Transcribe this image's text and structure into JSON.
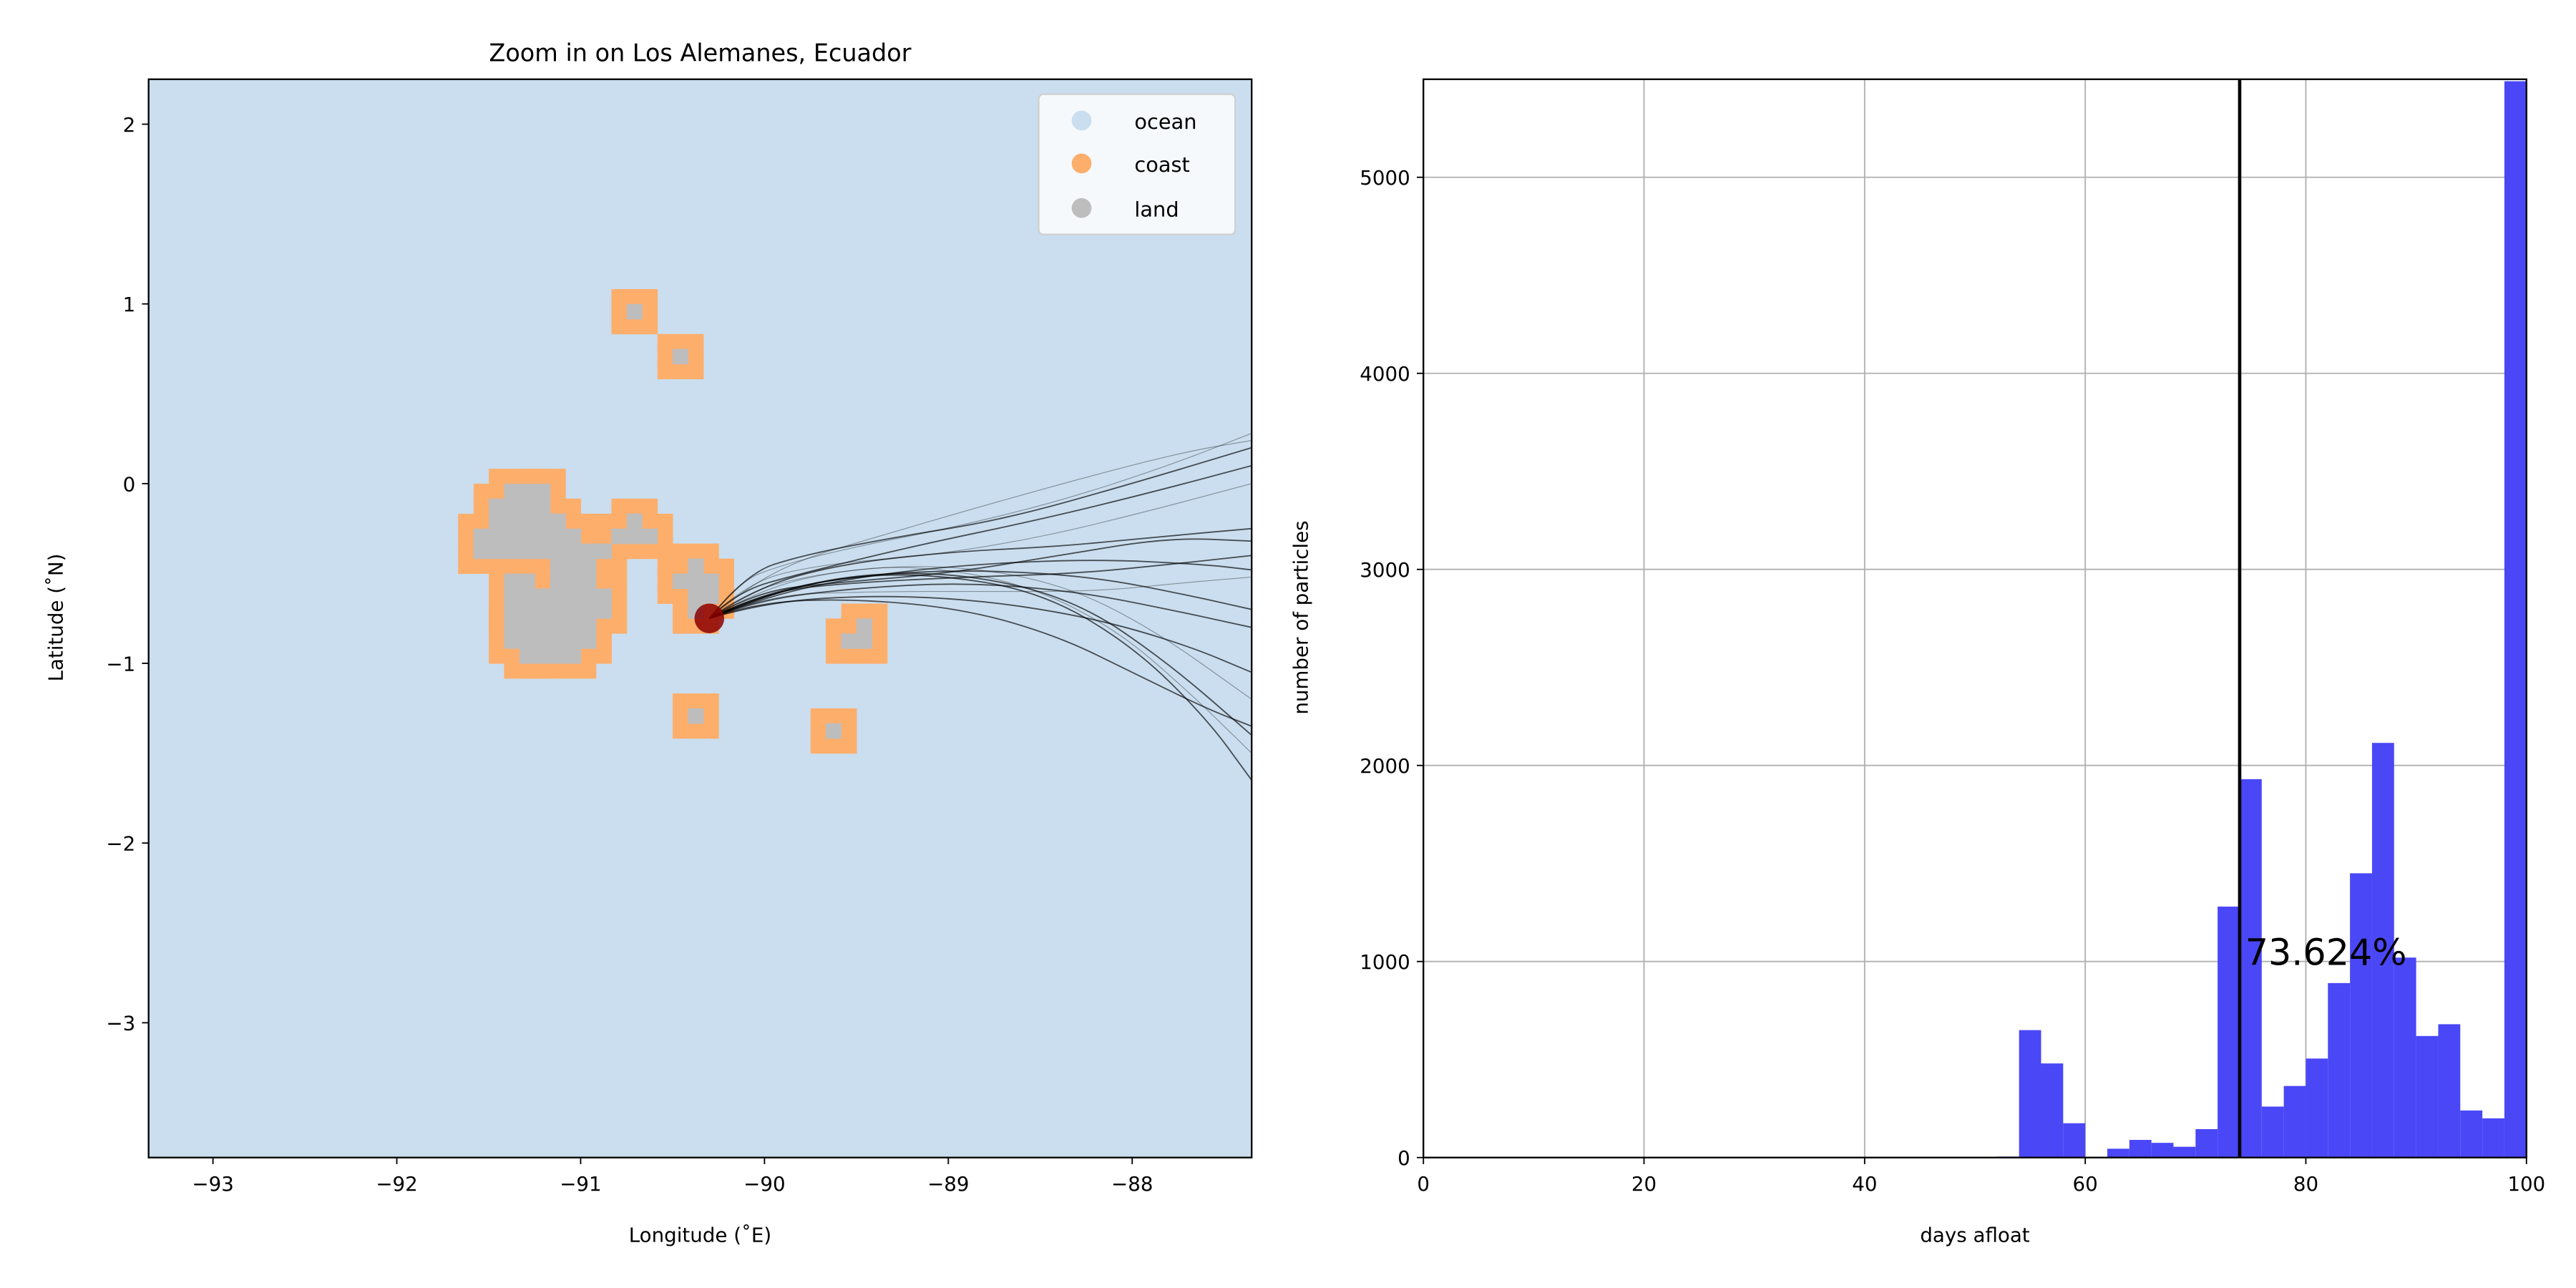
{
  "colors": {
    "ocean": "#cadeef",
    "coast": "#fdae6b",
    "land": "#bdbdbd",
    "start_marker": "#8b0000",
    "trajectory": "#000000",
    "hist_bar": "#4a47f7",
    "vline": "#000000",
    "grid": "#b0b0b0"
  },
  "chart_data": [
    {
      "type": "map",
      "title": "Zoom in on Los Alemanes, Ecuador",
      "xlabel": "Longitude (˚E)",
      "ylabel": "Latitude (˚N)",
      "xlim": [
        -93.35,
        -87.35
      ],
      "ylim": [
        -3.75,
        2.25
      ],
      "xticks": [
        -93,
        -92,
        -91,
        -90,
        -89,
        -88
      ],
      "xtick_labels": [
        "−93",
        "−92",
        "−91",
        "−90",
        "−89",
        "−88"
      ],
      "yticks": [
        2,
        1,
        0,
        -1,
        -2,
        -3
      ],
      "ytick_labels": [
        "2",
        "1",
        "0",
        "−1",
        "−2",
        "−3"
      ],
      "legend": [
        {
          "label": "ocean",
          "color_key": "ocean"
        },
        {
          "label": "coast",
          "color_key": "coast"
        },
        {
          "label": "land",
          "color_key": "land"
        }
      ],
      "legend_position": "top-right",
      "cell_size_deg": 0.083,
      "land_cells": [
        [
          -91.375,
          -0.042
        ],
        [
          -91.292,
          -0.042
        ],
        [
          -91.208,
          -0.042
        ],
        [
          -91.458,
          -0.125
        ],
        [
          -91.375,
          -0.125
        ],
        [
          -91.292,
          -0.125
        ],
        [
          -91.208,
          -0.125
        ],
        [
          -91.458,
          -0.208
        ],
        [
          -91.375,
          -0.208
        ],
        [
          -91.292,
          -0.208
        ],
        [
          -91.208,
          -0.208
        ],
        [
          -91.125,
          -0.208
        ],
        [
          -90.708,
          -0.208
        ],
        [
          -91.542,
          -0.292
        ],
        [
          -91.458,
          -0.292
        ],
        [
          -91.375,
          -0.292
        ],
        [
          -91.292,
          -0.292
        ],
        [
          -91.208,
          -0.292
        ],
        [
          -91.125,
          -0.292
        ],
        [
          -91.042,
          -0.292
        ],
        [
          -90.792,
          -0.292
        ],
        [
          -90.708,
          -0.292
        ],
        [
          -90.625,
          -0.292
        ],
        [
          -91.542,
          -0.375
        ],
        [
          -91.458,
          -0.375
        ],
        [
          -91.375,
          -0.375
        ],
        [
          -91.292,
          -0.375
        ],
        [
          -91.208,
          -0.375
        ],
        [
          -91.125,
          -0.375
        ],
        [
          -91.042,
          -0.375
        ],
        [
          -90.958,
          -0.375
        ],
        [
          -90.875,
          -0.375
        ],
        [
          -91.125,
          -0.458
        ],
        [
          -91.042,
          -0.458
        ],
        [
          -90.958,
          -0.458
        ],
        [
          -90.375,
          -0.458
        ],
        [
          -91.375,
          -0.542
        ],
        [
          -91.292,
          -0.542
        ],
        [
          -91.125,
          -0.542
        ],
        [
          -91.042,
          -0.542
        ],
        [
          -90.958,
          -0.542
        ],
        [
          -90.458,
          -0.542
        ],
        [
          -90.375,
          -0.542
        ],
        [
          -90.292,
          -0.542
        ],
        [
          -91.375,
          -0.625
        ],
        [
          -91.292,
          -0.625
        ],
        [
          -91.208,
          -0.625
        ],
        [
          -91.125,
          -0.625
        ],
        [
          -91.042,
          -0.625
        ],
        [
          -90.958,
          -0.625
        ],
        [
          -90.875,
          -0.625
        ],
        [
          -90.375,
          -0.625
        ],
        [
          -90.292,
          -0.625
        ],
        [
          -91.375,
          -0.708
        ],
        [
          -91.292,
          -0.708
        ],
        [
          -91.208,
          -0.708
        ],
        [
          -91.125,
          -0.708
        ],
        [
          -91.042,
          -0.708
        ],
        [
          -90.958,
          -0.708
        ],
        [
          -90.875,
          -0.708
        ],
        [
          -90.375,
          -0.708
        ],
        [
          -91.375,
          -0.792
        ],
        [
          -91.292,
          -0.792
        ],
        [
          -91.208,
          -0.792
        ],
        [
          -91.125,
          -0.792
        ],
        [
          -91.042,
          -0.792
        ],
        [
          -90.958,
          -0.792
        ],
        [
          -89.458,
          -0.792
        ],
        [
          -91.375,
          -0.875
        ],
        [
          -91.292,
          -0.875
        ],
        [
          -91.208,
          -0.875
        ],
        [
          -91.125,
          -0.875
        ],
        [
          -91.042,
          -0.875
        ],
        [
          -90.958,
          -0.875
        ],
        [
          -89.542,
          -0.875
        ],
        [
          -89.458,
          -0.875
        ],
        [
          -91.292,
          -0.958
        ],
        [
          -91.208,
          -0.958
        ],
        [
          -91.125,
          -0.958
        ],
        [
          -91.042,
          -0.958
        ],
        [
          -90.708,
          0.958
        ],
        [
          -90.458,
          0.708
        ],
        [
          -90.375,
          -1.292
        ],
        [
          -89.625,
          -1.375
        ]
      ],
      "start_point": {
        "lon": -90.3,
        "lat": -0.75
      },
      "trajectories": [
        [
          [
            -90.3,
            -0.75
          ],
          [
            -90.15,
            -0.55
          ],
          [
            -89.9,
            -0.45
          ],
          [
            -89.5,
            -0.35
          ],
          [
            -89.0,
            -0.25
          ],
          [
            -88.4,
            -0.1
          ],
          [
            -87.8,
            0.1
          ],
          [
            -87.35,
            0.28
          ]
        ],
        [
          [
            -90.3,
            -0.75
          ],
          [
            -90.1,
            -0.5
          ],
          [
            -89.8,
            -0.4
          ],
          [
            -89.3,
            -0.3
          ],
          [
            -88.7,
            -0.2
          ],
          [
            -88.0,
            0.0
          ],
          [
            -87.35,
            0.2
          ]
        ],
        [
          [
            -90.3,
            -0.75
          ],
          [
            -90.15,
            -0.6
          ],
          [
            -89.8,
            -0.5
          ],
          [
            -89.2,
            -0.35
          ],
          [
            -88.5,
            -0.2
          ],
          [
            -87.9,
            -0.05
          ],
          [
            -87.35,
            0.1
          ]
        ],
        [
          [
            -90.3,
            -0.75
          ],
          [
            -90.1,
            -0.55
          ],
          [
            -89.7,
            -0.45
          ],
          [
            -89.1,
            -0.4
          ],
          [
            -88.5,
            -0.3
          ],
          [
            -87.9,
            -0.15
          ],
          [
            -87.35,
            0.0
          ]
        ],
        [
          [
            -90.3,
            -0.75
          ],
          [
            -90.05,
            -0.6
          ],
          [
            -89.6,
            -0.55
          ],
          [
            -89.0,
            -0.5
          ],
          [
            -88.4,
            -0.4
          ],
          [
            -87.8,
            -0.3
          ],
          [
            -87.35,
            -0.32
          ]
        ],
        [
          [
            -90.3,
            -0.75
          ],
          [
            -90.0,
            -0.6
          ],
          [
            -89.5,
            -0.55
          ],
          [
            -88.9,
            -0.52
          ],
          [
            -88.3,
            -0.5
          ],
          [
            -87.8,
            -0.45
          ],
          [
            -87.35,
            -0.4
          ]
        ],
        [
          [
            -90.3,
            -0.75
          ],
          [
            -90.0,
            -0.62
          ],
          [
            -89.4,
            -0.6
          ],
          [
            -88.8,
            -0.6
          ],
          [
            -88.2,
            -0.6
          ],
          [
            -87.7,
            -0.55
          ],
          [
            -87.35,
            -0.52
          ]
        ],
        [
          [
            -90.3,
            -0.75
          ],
          [
            -90.05,
            -0.65
          ],
          [
            -89.5,
            -0.58
          ],
          [
            -88.9,
            -0.55
          ],
          [
            -88.3,
            -0.6
          ],
          [
            -87.8,
            -0.7
          ],
          [
            -87.35,
            -0.8
          ]
        ],
        [
          [
            -90.3,
            -0.75
          ],
          [
            -90.0,
            -0.66
          ],
          [
            -89.4,
            -0.62
          ],
          [
            -88.8,
            -0.65
          ],
          [
            -88.2,
            -0.75
          ],
          [
            -87.7,
            -0.9
          ],
          [
            -87.35,
            -1.05
          ]
        ],
        [
          [
            -90.3,
            -0.75
          ],
          [
            -90.05,
            -0.6
          ],
          [
            -89.6,
            -0.48
          ],
          [
            -89.0,
            -0.45
          ],
          [
            -88.4,
            -0.55
          ],
          [
            -87.9,
            -0.8
          ],
          [
            -87.35,
            -1.2
          ]
        ],
        [
          [
            -90.3,
            -0.75
          ],
          [
            -90.0,
            -0.62
          ],
          [
            -89.5,
            -0.5
          ],
          [
            -88.9,
            -0.5
          ],
          [
            -88.3,
            -0.65
          ],
          [
            -87.8,
            -1.0
          ],
          [
            -87.35,
            -1.4
          ]
        ],
        [
          [
            -90.3,
            -0.75
          ],
          [
            -90.05,
            -0.64
          ],
          [
            -89.6,
            -0.52
          ],
          [
            -89.1,
            -0.5
          ],
          [
            -88.5,
            -0.6
          ],
          [
            -88.0,
            -0.9
          ],
          [
            -87.6,
            -1.3
          ],
          [
            -87.35,
            -1.65
          ]
        ],
        [
          [
            -90.3,
            -0.75
          ],
          [
            -90.1,
            -0.6
          ],
          [
            -89.7,
            -0.5
          ],
          [
            -89.2,
            -0.45
          ],
          [
            -88.6,
            -0.55
          ],
          [
            -88.1,
            -0.8
          ],
          [
            -87.7,
            -1.15
          ],
          [
            -87.35,
            -1.5
          ]
        ],
        [
          [
            -90.3,
            -0.75
          ],
          [
            -90.05,
            -0.58
          ],
          [
            -89.6,
            -0.45
          ],
          [
            -89.0,
            -0.38
          ],
          [
            -88.4,
            -0.35
          ],
          [
            -87.9,
            -0.3
          ],
          [
            -87.35,
            -0.25
          ]
        ],
        [
          [
            -90.3,
            -0.75
          ],
          [
            -90.0,
            -0.63
          ],
          [
            -89.5,
            -0.52
          ],
          [
            -88.9,
            -0.45
          ],
          [
            -88.2,
            -0.42
          ],
          [
            -87.6,
            -0.45
          ],
          [
            -87.35,
            -0.48
          ]
        ],
        [
          [
            -90.3,
            -0.75
          ],
          [
            -90.1,
            -0.58
          ],
          [
            -89.8,
            -0.42
          ],
          [
            -89.4,
            -0.3
          ],
          [
            -88.8,
            -0.12
          ],
          [
            -88.2,
            0.05
          ],
          [
            -87.7,
            0.18
          ],
          [
            -87.35,
            0.24
          ]
        ],
        [
          [
            -90.3,
            -0.75
          ],
          [
            -90.05,
            -0.66
          ],
          [
            -89.5,
            -0.64
          ],
          [
            -88.9,
            -0.7
          ],
          [
            -88.4,
            -0.85
          ],
          [
            -88.0,
            -1.05
          ],
          [
            -87.6,
            -1.25
          ],
          [
            -87.35,
            -1.35
          ]
        ],
        [
          [
            -90.3,
            -0.75
          ],
          [
            -90.0,
            -0.6
          ],
          [
            -89.4,
            -0.5
          ],
          [
            -88.8,
            -0.48
          ],
          [
            -88.2,
            -0.52
          ],
          [
            -87.7,
            -0.62
          ],
          [
            -87.35,
            -0.7
          ]
        ]
      ]
    },
    {
      "type": "bar",
      "xlabel": "days afloat",
      "ylabel": "number of particles",
      "xlim": [
        0,
        100
      ],
      "ylim": [
        0,
        5500
      ],
      "xticks": [
        0,
        20,
        40,
        60,
        80,
        100
      ],
      "xtick_labels": [
        "0",
        "20",
        "40",
        "60",
        "80",
        "100"
      ],
      "yticks": [
        0,
        1000,
        2000,
        3000,
        4000,
        5000
      ],
      "ytick_labels": [
        "0",
        "1000",
        "2000",
        "3000",
        "4000",
        "5000"
      ],
      "grid": true,
      "bin_edges": [
        52,
        54,
        56,
        58,
        60,
        62,
        64,
        66,
        68,
        70,
        72,
        74,
        76,
        78,
        80,
        82,
        84,
        86,
        88,
        90,
        92,
        94,
        96,
        98,
        100
      ],
      "counts": [
        5,
        650,
        480,
        175,
        0,
        45,
        90,
        75,
        55,
        145,
        1280,
        1930,
        260,
        365,
        505,
        890,
        1450,
        2115,
        1020,
        620,
        680,
        240,
        200,
        5490
      ],
      "vline_x": 74,
      "annotation": {
        "text": "73.624%",
        "x": 76,
        "y": 1050
      }
    }
  ]
}
